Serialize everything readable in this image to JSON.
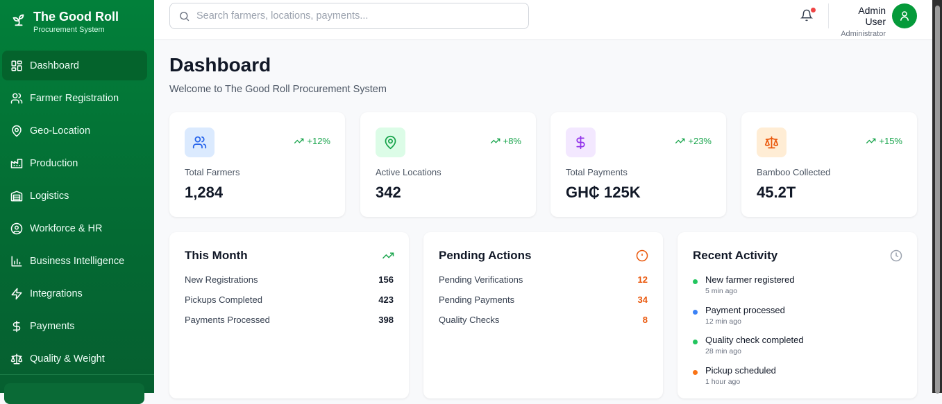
{
  "brand": {
    "title": "The Good Roll",
    "subtitle": "Procurement System"
  },
  "sidebar": {
    "items": [
      {
        "label": "Dashboard",
        "icon": "dashboard-icon",
        "active": true
      },
      {
        "label": "Farmer Registration",
        "icon": "users-icon"
      },
      {
        "label": "Geo-Location",
        "icon": "map-pin-icon"
      },
      {
        "label": "Production",
        "icon": "factory-icon"
      },
      {
        "label": "Logistics",
        "icon": "warehouse-icon"
      },
      {
        "label": "Workforce & HR",
        "icon": "user-circle-icon"
      },
      {
        "label": "Business Intelligence",
        "icon": "bar-chart-icon"
      },
      {
        "label": "Integrations",
        "icon": "zap-icon"
      },
      {
        "label": "Payments",
        "icon": "dollar-icon"
      },
      {
        "label": "Quality & Weight",
        "icon": "scale-icon"
      }
    ]
  },
  "header": {
    "search_placeholder": "Search farmers, locations, payments...",
    "user_name": "Admin User",
    "user_role": "Administrator"
  },
  "page": {
    "title": "Dashboard",
    "subtitle": "Welcome to The Good Roll Procurement System"
  },
  "stats": [
    {
      "label": "Total Farmers",
      "value": "1,284",
      "trend": "+12%",
      "icon": "users-icon",
      "bg": "#dbeafe",
      "color": "#2563eb"
    },
    {
      "label": "Active Locations",
      "value": "342",
      "trend": "+8%",
      "icon": "map-pin-icon",
      "bg": "#dcfce7",
      "color": "#16a34a"
    },
    {
      "label": "Total Payments",
      "value": "GH₵ 125K",
      "trend": "+23%",
      "icon": "dollar-icon",
      "bg": "#f3e8ff",
      "color": "#9333ea"
    },
    {
      "label": "Bamboo Collected",
      "value": "45.2T",
      "trend": "+15%",
      "icon": "scale-icon",
      "bg": "#ffedd5",
      "color": "#ea580c"
    }
  ],
  "this_month": {
    "title": "This Month",
    "rows": [
      {
        "label": "New Registrations",
        "value": "156"
      },
      {
        "label": "Pickups Completed",
        "value": "423"
      },
      {
        "label": "Payments Processed",
        "value": "398"
      }
    ]
  },
  "pending": {
    "title": "Pending Actions",
    "rows": [
      {
        "label": "Pending Verifications",
        "value": "12"
      },
      {
        "label": "Pending Payments",
        "value": "34"
      },
      {
        "label": "Quality Checks",
        "value": "8"
      }
    ],
    "accent": "#ea580c"
  },
  "activity": {
    "title": "Recent Activity",
    "items": [
      {
        "title": "New farmer registered",
        "time": "5 min ago",
        "color": "#22c55e"
      },
      {
        "title": "Payment processed",
        "time": "12 min ago",
        "color": "#3b82f6"
      },
      {
        "title": "Quality check completed",
        "time": "28 min ago",
        "color": "#22c55e"
      },
      {
        "title": "Pickup scheduled",
        "time": "1 hour ago",
        "color": "#f97316"
      }
    ]
  }
}
